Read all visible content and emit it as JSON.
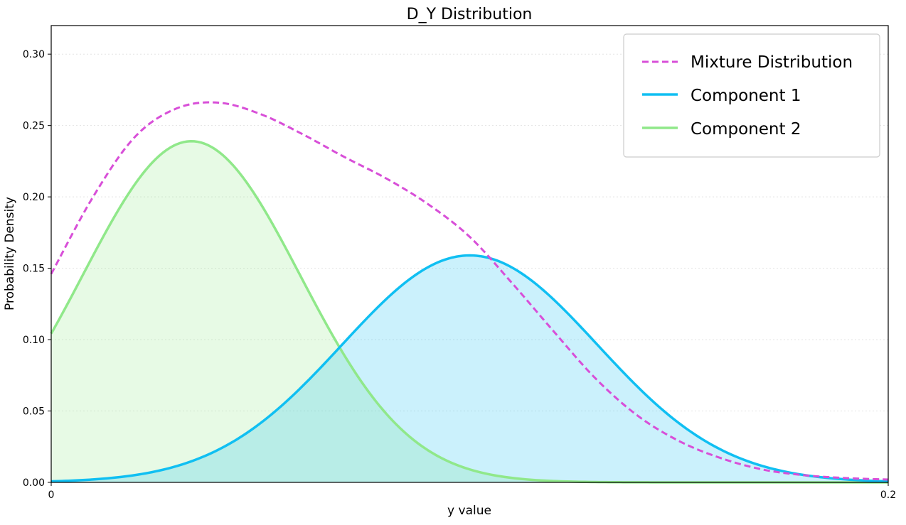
{
  "chart_data": {
    "type": "line",
    "title": "D_Y Distribution",
    "xlabel": "y value",
    "ylabel": "Probability Density",
    "xlim": [
      0,
      0.2
    ],
    "ylim": [
      0,
      0.32
    ],
    "x_ticks": [
      "0",
      "0.2"
    ],
    "y_ticks": [
      "0.00",
      "0.05",
      "0.10",
      "0.15",
      "0.20",
      "0.25",
      "0.30"
    ],
    "grid": "horizontal dotted",
    "legend_position": "top-right",
    "series": [
      {
        "name": "Mixture Distribution",
        "style": "dashed",
        "color": "#d84fd8",
        "fill": false,
        "values_desc": "sum of components",
        "x": [
          0,
          0.01,
          0.02,
          0.03,
          0.04,
          0.05,
          0.06,
          0.07,
          0.08,
          0.09,
          0.1,
          0.11,
          0.12,
          0.13,
          0.14,
          0.15,
          0.16,
          0.17,
          0.18,
          0.19,
          0.2
        ],
        "y": [
          0.146,
          0.2,
          0.242,
          0.262,
          0.266,
          0.258,
          0.244,
          0.228,
          0.213,
          0.195,
          0.172,
          0.14,
          0.106,
          0.073,
          0.047,
          0.029,
          0.017,
          0.009,
          0.005,
          0.003,
          0.002
        ]
      },
      {
        "name": "Component 1",
        "style": "solid",
        "color": "#10bff2",
        "fill": true,
        "mean": 0.1,
        "sd": 0.0305,
        "peak": 0.159
      },
      {
        "name": "Component 2",
        "style": "solid",
        "color": "#90e88a",
        "fill": true,
        "mean": 0.0335,
        "sd": 0.026,
        "peak": 0.239
      }
    ]
  }
}
